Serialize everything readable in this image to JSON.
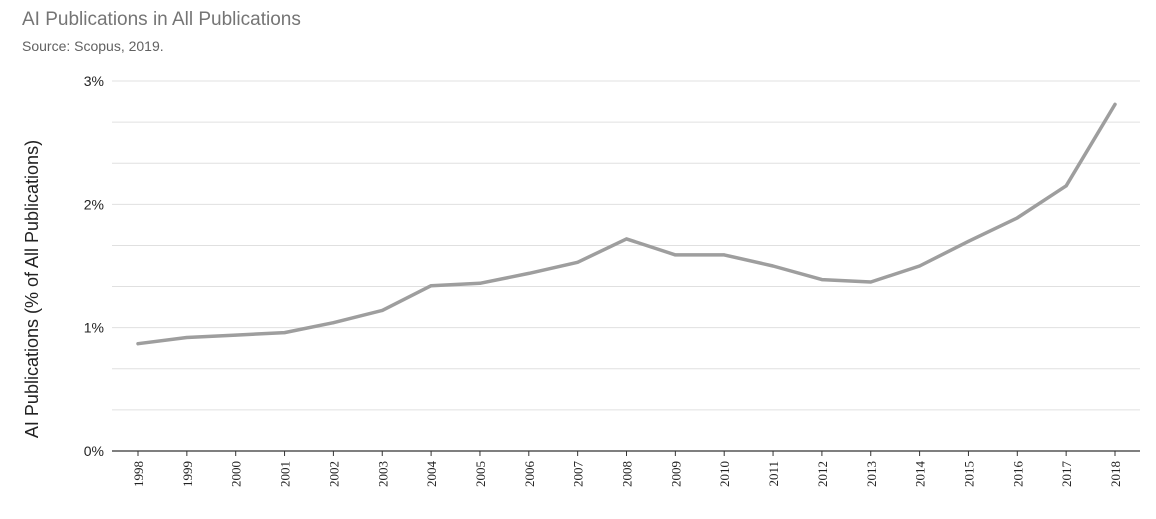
{
  "chart_data": {
    "type": "line",
    "title": "AI Publications in All Publications",
    "subtitle": "Source: Scopus, 2019.",
    "xlabel": "",
    "ylabel": "AI Publications (% of All Publications)",
    "x": [
      1998,
      1999,
      2000,
      2001,
      2002,
      2003,
      2004,
      2005,
      2006,
      2007,
      2008,
      2009,
      2010,
      2011,
      2012,
      2013,
      2014,
      2015,
      2016,
      2017,
      2018
    ],
    "series": [
      {
        "values": [
          0.87,
          0.92,
          0.94,
          0.96,
          1.04,
          1.14,
          1.34,
          1.36,
          1.44,
          1.53,
          1.72,
          1.59,
          1.59,
          1.5,
          1.39,
          1.37,
          1.5,
          1.7,
          1.89,
          2.15,
          2.81
        ]
      }
    ],
    "yticks": [
      "0%",
      "1%",
      "2%",
      "3%"
    ],
    "ylim": [
      0,
      3
    ],
    "grid": "horizontal",
    "line_color": "#9e9e9e",
    "grid_color": "#e0e0e0",
    "axis_color": "#333333"
  }
}
